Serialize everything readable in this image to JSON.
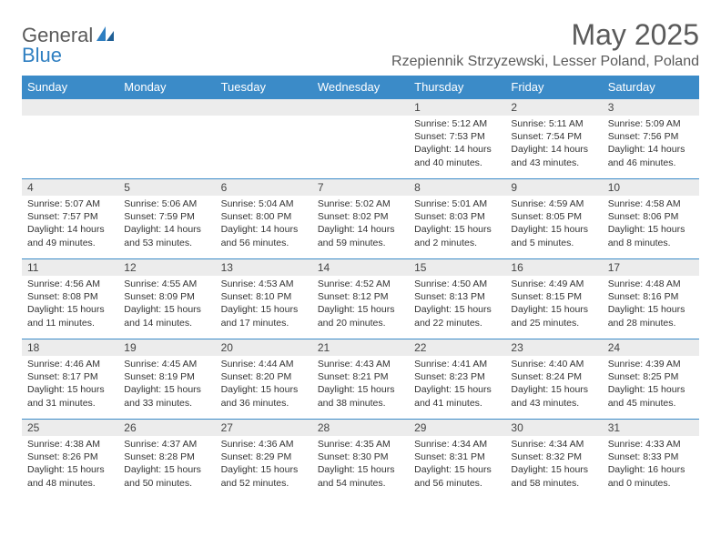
{
  "logo": {
    "text1": "General",
    "text2": "Blue"
  },
  "title": "May 2025",
  "location": "Rzepiennik Strzyzewski, Lesser Poland, Poland",
  "colors": {
    "header_bg": "#3b8bc8",
    "header_text": "#ffffff",
    "daynum_bg": "#ececec",
    "border": "#3b8bc8",
    "logo_gray": "#5a5a5a",
    "logo_blue": "#2f7fc1"
  },
  "fonts": {
    "title_size": 32,
    "location_size": 16,
    "header_size": 13,
    "daynum_size": 12,
    "content_size": 10.5
  },
  "weekdays": [
    "Sunday",
    "Monday",
    "Tuesday",
    "Wednesday",
    "Thursday",
    "Friday",
    "Saturday"
  ],
  "weeks": [
    [
      null,
      null,
      null,
      null,
      {
        "n": "1",
        "sr": "5:12 AM",
        "ss": "7:53 PM",
        "dh": "14",
        "dm": "40"
      },
      {
        "n": "2",
        "sr": "5:11 AM",
        "ss": "7:54 PM",
        "dh": "14",
        "dm": "43"
      },
      {
        "n": "3",
        "sr": "5:09 AM",
        "ss": "7:56 PM",
        "dh": "14",
        "dm": "46"
      }
    ],
    [
      {
        "n": "4",
        "sr": "5:07 AM",
        "ss": "7:57 PM",
        "dh": "14",
        "dm": "49"
      },
      {
        "n": "5",
        "sr": "5:06 AM",
        "ss": "7:59 PM",
        "dh": "14",
        "dm": "53"
      },
      {
        "n": "6",
        "sr": "5:04 AM",
        "ss": "8:00 PM",
        "dh": "14",
        "dm": "56"
      },
      {
        "n": "7",
        "sr": "5:02 AM",
        "ss": "8:02 PM",
        "dh": "14",
        "dm": "59"
      },
      {
        "n": "8",
        "sr": "5:01 AM",
        "ss": "8:03 PM",
        "dh": "15",
        "dm": "2"
      },
      {
        "n": "9",
        "sr": "4:59 AM",
        "ss": "8:05 PM",
        "dh": "15",
        "dm": "5"
      },
      {
        "n": "10",
        "sr": "4:58 AM",
        "ss": "8:06 PM",
        "dh": "15",
        "dm": "8"
      }
    ],
    [
      {
        "n": "11",
        "sr": "4:56 AM",
        "ss": "8:08 PM",
        "dh": "15",
        "dm": "11"
      },
      {
        "n": "12",
        "sr": "4:55 AM",
        "ss": "8:09 PM",
        "dh": "15",
        "dm": "14"
      },
      {
        "n": "13",
        "sr": "4:53 AM",
        "ss": "8:10 PM",
        "dh": "15",
        "dm": "17"
      },
      {
        "n": "14",
        "sr": "4:52 AM",
        "ss": "8:12 PM",
        "dh": "15",
        "dm": "20"
      },
      {
        "n": "15",
        "sr": "4:50 AM",
        "ss": "8:13 PM",
        "dh": "15",
        "dm": "22"
      },
      {
        "n": "16",
        "sr": "4:49 AM",
        "ss": "8:15 PM",
        "dh": "15",
        "dm": "25"
      },
      {
        "n": "17",
        "sr": "4:48 AM",
        "ss": "8:16 PM",
        "dh": "15",
        "dm": "28"
      }
    ],
    [
      {
        "n": "18",
        "sr": "4:46 AM",
        "ss": "8:17 PM",
        "dh": "15",
        "dm": "31"
      },
      {
        "n": "19",
        "sr": "4:45 AM",
        "ss": "8:19 PM",
        "dh": "15",
        "dm": "33"
      },
      {
        "n": "20",
        "sr": "4:44 AM",
        "ss": "8:20 PM",
        "dh": "15",
        "dm": "36"
      },
      {
        "n": "21",
        "sr": "4:43 AM",
        "ss": "8:21 PM",
        "dh": "15",
        "dm": "38"
      },
      {
        "n": "22",
        "sr": "4:41 AM",
        "ss": "8:23 PM",
        "dh": "15",
        "dm": "41"
      },
      {
        "n": "23",
        "sr": "4:40 AM",
        "ss": "8:24 PM",
        "dh": "15",
        "dm": "43"
      },
      {
        "n": "24",
        "sr": "4:39 AM",
        "ss": "8:25 PM",
        "dh": "15",
        "dm": "45"
      }
    ],
    [
      {
        "n": "25",
        "sr": "4:38 AM",
        "ss": "8:26 PM",
        "dh": "15",
        "dm": "48"
      },
      {
        "n": "26",
        "sr": "4:37 AM",
        "ss": "8:28 PM",
        "dh": "15",
        "dm": "50"
      },
      {
        "n": "27",
        "sr": "4:36 AM",
        "ss": "8:29 PM",
        "dh": "15",
        "dm": "52"
      },
      {
        "n": "28",
        "sr": "4:35 AM",
        "ss": "8:30 PM",
        "dh": "15",
        "dm": "54"
      },
      {
        "n": "29",
        "sr": "4:34 AM",
        "ss": "8:31 PM",
        "dh": "15",
        "dm": "56"
      },
      {
        "n": "30",
        "sr": "4:34 AM",
        "ss": "8:32 PM",
        "dh": "15",
        "dm": "58"
      },
      {
        "n": "31",
        "sr": "4:33 AM",
        "ss": "8:33 PM",
        "dh": "16",
        "dm": "0"
      }
    ]
  ],
  "labels": {
    "sunrise": "Sunrise: ",
    "sunset": "Sunset: ",
    "daylight_pre": "Daylight: ",
    "hours": " hours",
    "and": "and ",
    "minutes": " minutes."
  }
}
